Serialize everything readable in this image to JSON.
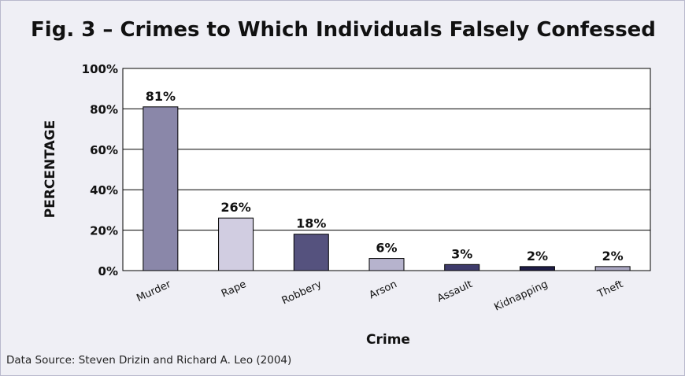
{
  "chart_data": {
    "type": "bar",
    "title": "Fig. 3 – Crimes to Which Individuals Falsely Confessed",
    "xlabel": "Crime",
    "ylabel": "PERCENTAGE",
    "categories": [
      "Murder",
      "Rape",
      "Robbery",
      "Arson",
      "Assault",
      "Kidnapping",
      "Theft"
    ],
    "values": [
      81,
      26,
      18,
      6,
      3,
      2,
      2
    ],
    "data_labels": [
      "81%",
      "26%",
      "18%",
      "6%",
      "3%",
      "2%",
      "2%"
    ],
    "bar_colors": [
      "#8a87a9",
      "#d1cde1",
      "#55527e",
      "#b6b3cd",
      "#3e3b6b",
      "#1e1c46",
      "#a9a6c1"
    ],
    "ylim": [
      0,
      100
    ],
    "yticks": [
      0,
      20,
      40,
      60,
      80,
      100
    ],
    "ytick_labels": [
      "0%",
      "20%",
      "40%",
      "60%",
      "80%",
      "100%"
    ],
    "grid": true,
    "legend": "none"
  },
  "source_note": "Data Source: Steven Drizin and Richard A. Leo (2004)",
  "colors": {
    "background": "#efeff5",
    "plot_area": "#ffffff",
    "gridline": "#000000",
    "frame_border": "#b9b9cc"
  }
}
